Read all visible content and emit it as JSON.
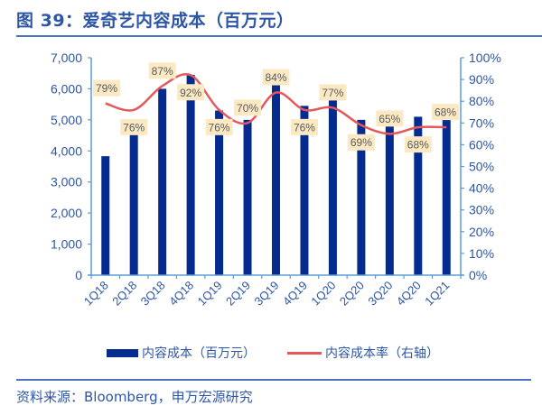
{
  "title": "图 39：爱奇艺内容成本（百万元）",
  "source": "资料来源：Bloomberg，申万宏源研究",
  "legend": {
    "bar_label": "内容成本（百万元）",
    "line_label": "内容成本率（右轴）"
  },
  "colors": {
    "bar": "#062B8E",
    "line": "#E4585C",
    "axis": "#5B9BD5",
    "tick_text": "#2E56A6",
    "label_bg": "#FBE9C3",
    "label_text": "#5A5A5A"
  },
  "chart_data": {
    "type": "bar+line",
    "title": "图 39：爱奇艺内容成本（百万元）",
    "categories": [
      "1Q18",
      "2Q18",
      "3Q18",
      "4Q18",
      "1Q19",
      "2Q19",
      "3Q19",
      "4Q19",
      "1Q20",
      "2Q20",
      "3Q20",
      "4Q20",
      "1Q21"
    ],
    "series": [
      {
        "name": "内容成本（百万元）",
        "type": "bar",
        "axis": "left",
        "values": [
          3830,
          4700,
          6000,
          6450,
          5300,
          5000,
          6200,
          5450,
          5900,
          5000,
          5100,
          5100,
          5400
        ]
      },
      {
        "name": "内容成本率（右轴）",
        "type": "line",
        "axis": "right",
        "values": [
          79,
          76,
          87,
          92,
          76,
          70,
          84,
          76,
          77,
          69,
          65,
          68,
          68
        ],
        "data_labels": [
          "79%",
          "76%",
          "87%",
          "92%",
          "76%",
          "70%",
          "84%",
          "76%",
          "77%",
          "69%",
          "65%",
          "68%",
          "68%"
        ]
      }
    ],
    "y_left": {
      "min": 0,
      "max": 7000,
      "ticks": [
        0,
        1000,
        2000,
        3000,
        4000,
        5000,
        6000,
        7000
      ],
      "tick_labels": [
        "0",
        "1,000",
        "2,000",
        "3,000",
        "4,000",
        "5,000",
        "6,000",
        "7,000"
      ]
    },
    "y_right": {
      "min": 0,
      "max": 100,
      "ticks": [
        0,
        10,
        20,
        30,
        40,
        50,
        60,
        70,
        80,
        90,
        100
      ],
      "tick_labels": [
        "0%",
        "10%",
        "20%",
        "30%",
        "40%",
        "50%",
        "60%",
        "70%",
        "80%",
        "90%",
        "100%"
      ]
    },
    "grid": false,
    "legend_position": "bottom"
  }
}
